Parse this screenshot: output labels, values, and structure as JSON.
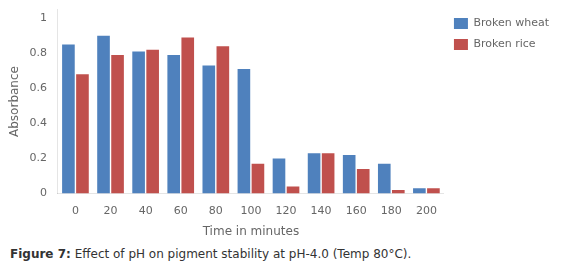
{
  "chart_data": {
    "type": "bar",
    "categories": [
      0,
      20,
      40,
      60,
      80,
      100,
      120,
      140,
      160,
      180,
      200
    ],
    "series": [
      {
        "name": "Broken wheat",
        "color": "#4F81BD",
        "values": [
          0.85,
          0.9,
          0.81,
          0.79,
          0.73,
          0.71,
          0.2,
          0.23,
          0.22,
          0.17,
          0.03
        ]
      },
      {
        "name": "Broken rice",
        "color": "#C0504D",
        "values": [
          0.68,
          0.79,
          0.82,
          0.89,
          0.84,
          0.17,
          0.04,
          0.23,
          0.14,
          0.02,
          0.03
        ]
      }
    ],
    "xlabel": "Time in minutes",
    "ylabel": "Absorbance",
    "ylim": [
      0,
      1.05
    ],
    "yticks": [
      0,
      0.2,
      0.4,
      0.6,
      0.8,
      1
    ],
    "grid": false,
    "legend": "right",
    "annotations": [
      "Figure 7:",
      "Effect of pH on pigment stability at pH-4.0 (Temp 80°C)."
    ]
  }
}
